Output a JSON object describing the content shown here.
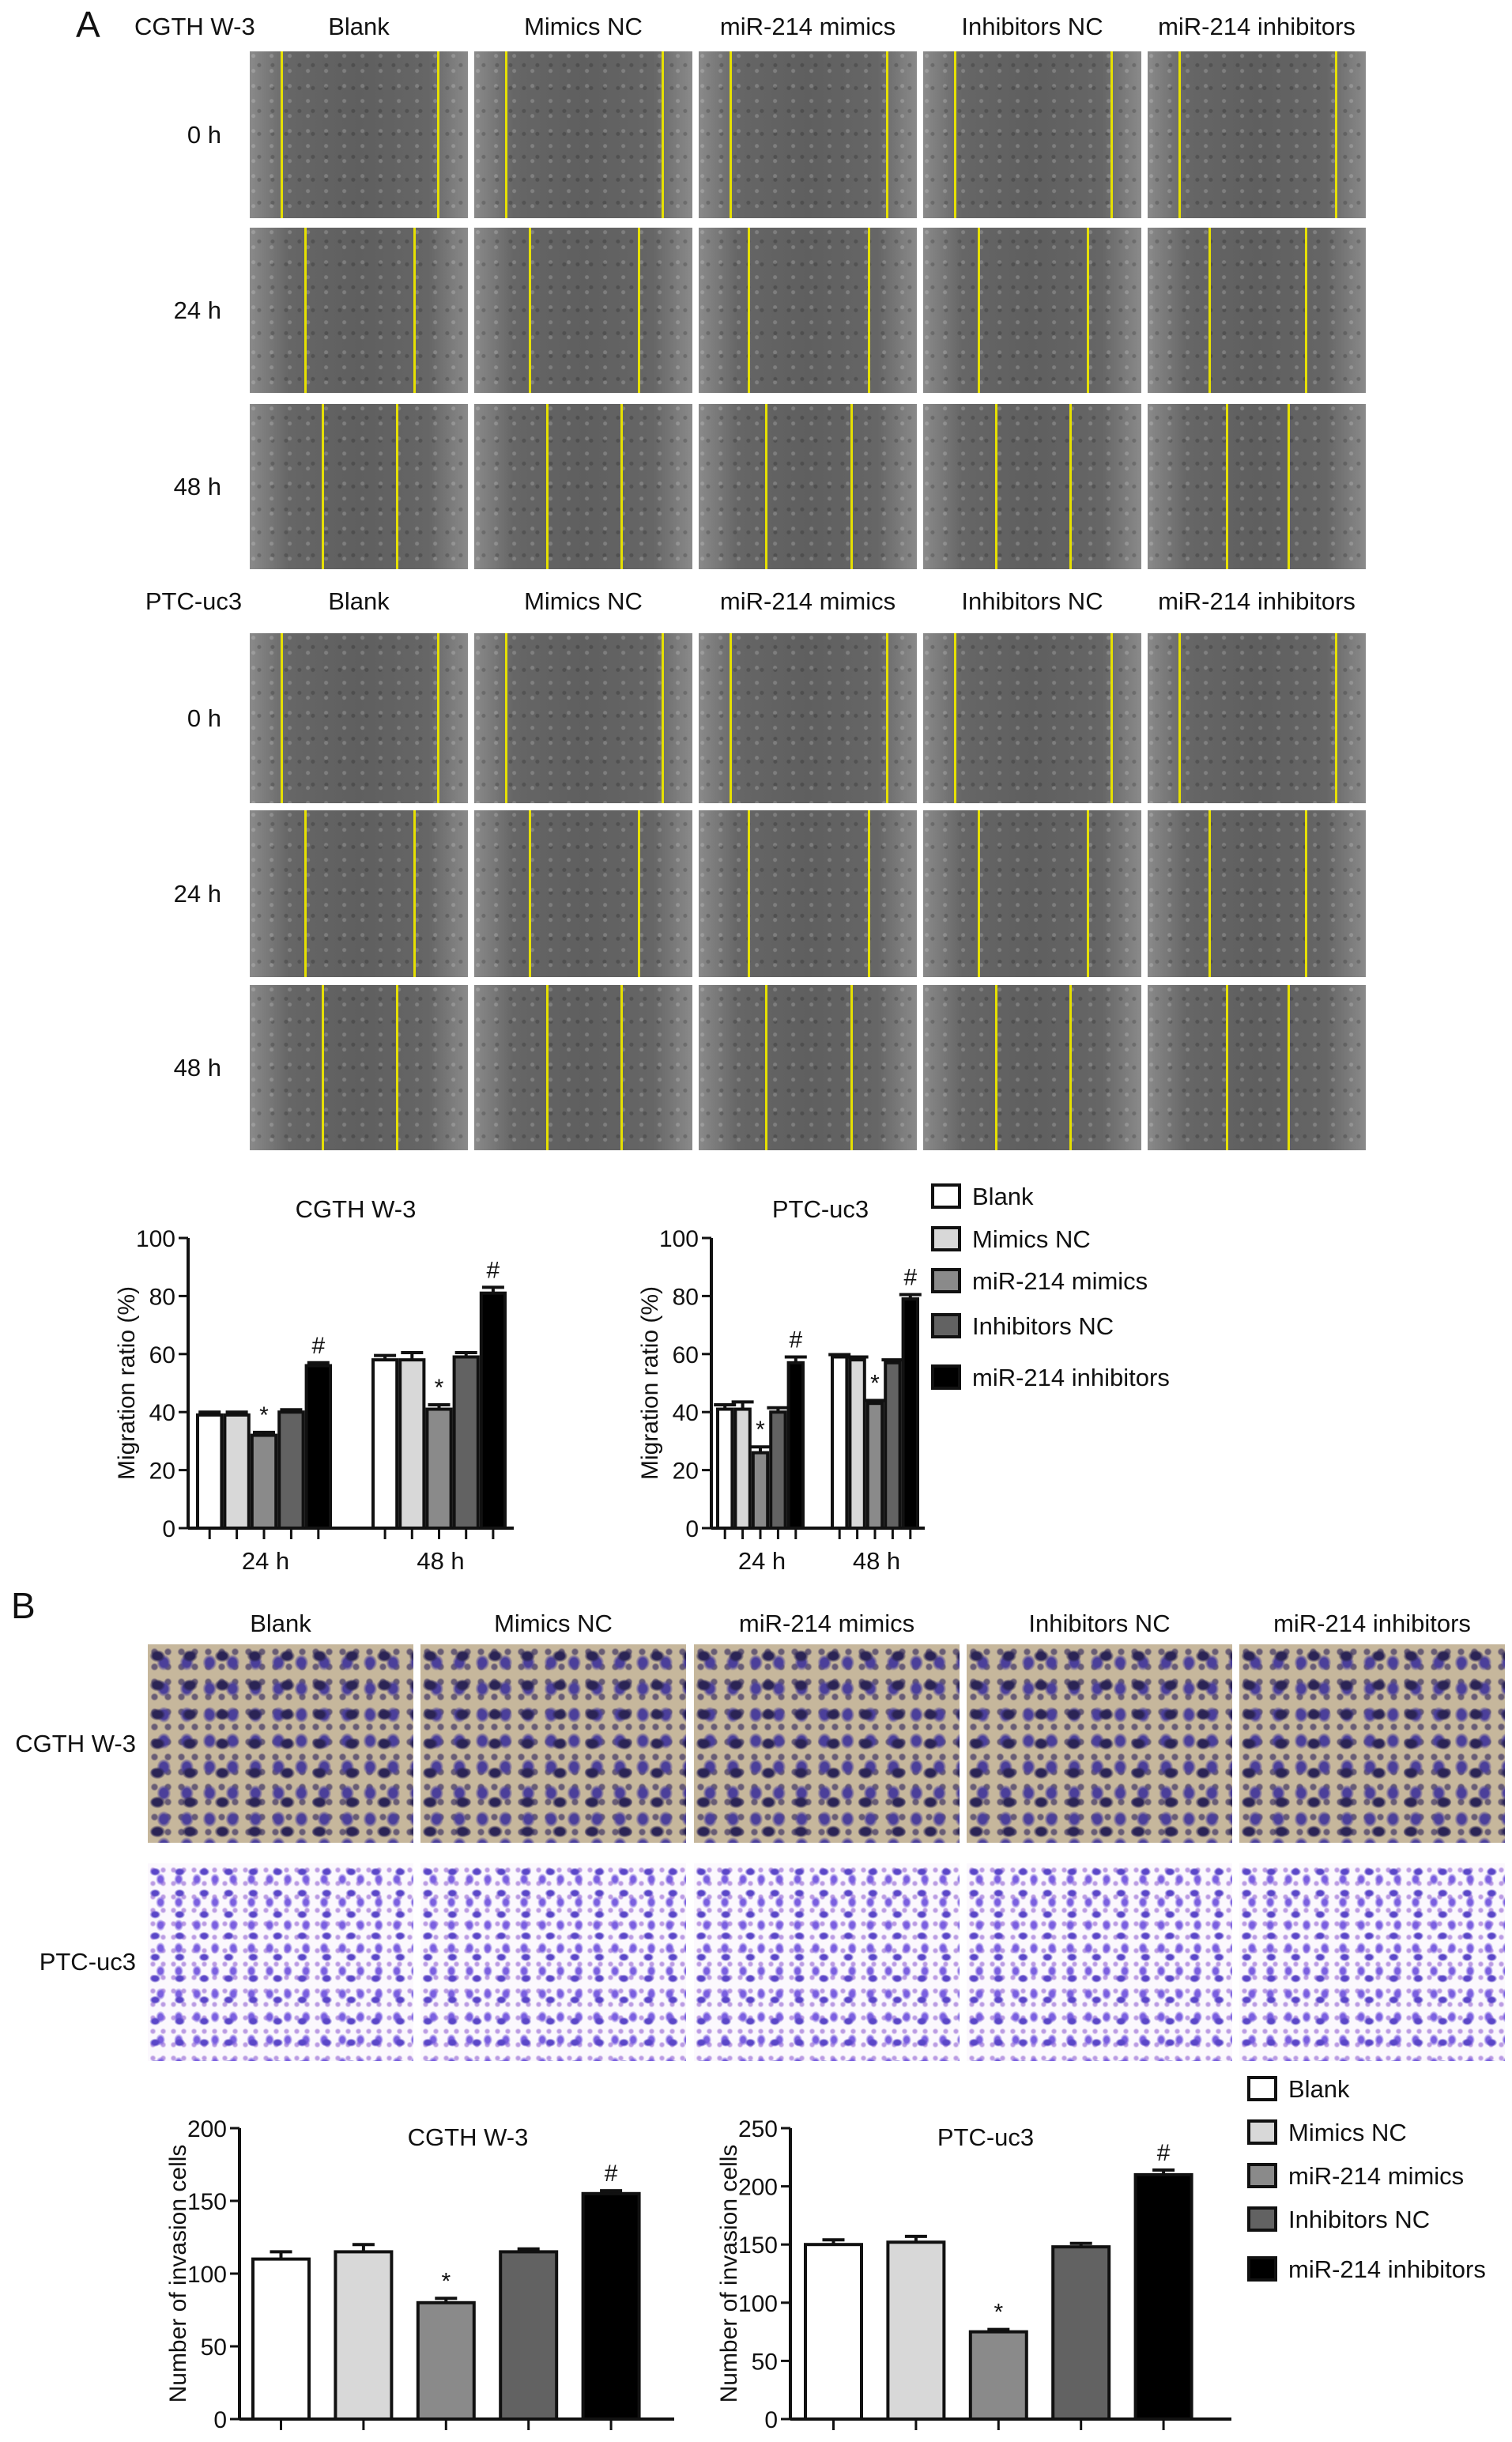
{
  "panel_a": {
    "letter": "A",
    "groups": [
      "Blank",
      "Mimics NC",
      "miR-214 mimics",
      "Inhibitors NC",
      "miR-214 inhibitors"
    ],
    "timepoints": [
      "0 h",
      "24 h",
      "48 h"
    ],
    "blocks": [
      {
        "cell_line": "CGTH W-3"
      },
      {
        "cell_line": "PTC-uc3"
      }
    ]
  },
  "panel_b": {
    "letter": "B",
    "groups": [
      "Blank",
      "Mimics NC",
      "miR-214 mimics",
      "Inhibitors NC",
      "miR-214 inhibitors"
    ],
    "rows": [
      "CGTH W-3",
      "PTC-uc3"
    ]
  },
  "colors": {
    "Blank": "#ffffff",
    "Mimics NC": "#d8d8d8",
    "miR-214 mimics": "#8a8a8a",
    "Inhibitors NC": "#626262",
    "miR-214 inhibitors": "#000000",
    "scratch_line": "#e6e000"
  },
  "chart_data": [
    {
      "type": "bar",
      "title": "CGTH W-3",
      "ylabel": "Migration ratio (%)",
      "ylim": [
        0,
        100
      ],
      "yticks": [
        0,
        20,
        40,
        60,
        80,
        100
      ],
      "categories": [
        "24 h",
        "48 h"
      ],
      "series": [
        {
          "name": "Blank",
          "values": [
            39,
            58
          ],
          "errors": [
            1,
            1.5
          ]
        },
        {
          "name": "Mimics NC",
          "values": [
            39,
            58
          ],
          "errors": [
            1,
            2.5
          ]
        },
        {
          "name": "miR-214 mimics",
          "values": [
            32,
            41
          ],
          "errors": [
            1,
            1.5
          ]
        },
        {
          "name": "Inhibitors NC",
          "values": [
            40,
            59
          ],
          "errors": [
            0.8,
            1.5
          ]
        },
        {
          "name": "miR-214 inhibitors",
          "values": [
            56,
            81
          ],
          "errors": [
            1,
            2
          ]
        }
      ],
      "annotations": [
        [
          "",
          "",
          "*",
          "",
          "#"
        ],
        [
          "",
          "",
          "*",
          "",
          "#"
        ]
      ]
    },
    {
      "type": "bar",
      "title": "PTC-uc3",
      "ylabel": "Migration ratio (%)",
      "ylim": [
        0,
        100
      ],
      "yticks": [
        0,
        20,
        40,
        60,
        80,
        100
      ],
      "categories": [
        "24 h",
        "48 h"
      ],
      "legend": "right",
      "series": [
        {
          "name": "Blank",
          "values": [
            41,
            59
          ],
          "errors": [
            1.5,
            0.8
          ]
        },
        {
          "name": "Mimics NC",
          "values": [
            41,
            58
          ],
          "errors": [
            2.5,
            1
          ]
        },
        {
          "name": "miR-214 mimics",
          "values": [
            26,
            43
          ],
          "errors": [
            2,
            1
          ]
        },
        {
          "name": "Inhibitors NC",
          "values": [
            40,
            57
          ],
          "errors": [
            1.5,
            1
          ]
        },
        {
          "name": "miR-214 inhibitors",
          "values": [
            57,
            79
          ],
          "errors": [
            2,
            1.5
          ]
        }
      ],
      "annotations": [
        [
          "",
          "",
          "*",
          "",
          "#"
        ],
        [
          "",
          "",
          "*",
          "",
          "#"
        ]
      ]
    },
    {
      "type": "bar",
      "title": "CGTH W-3",
      "ylabel": "Number of invasion cells",
      "ylim": [
        0,
        200
      ],
      "yticks": [
        0,
        50,
        100,
        150,
        200
      ],
      "categories": [
        "Blank",
        "Mimics NC",
        "miR-214 mimics",
        "Inhibitors NC",
        "miR-214 inhibitors"
      ],
      "values": [
        110,
        115,
        80,
        115,
        155
      ],
      "errors": [
        5,
        5,
        3,
        2,
        2
      ],
      "annotations": [
        "",
        "",
        "*",
        "",
        "#"
      ]
    },
    {
      "type": "bar",
      "title": "PTC-uc3",
      "ylabel": "Number of invasion cells",
      "ylim": [
        0,
        250
      ],
      "yticks": [
        0,
        50,
        100,
        150,
        200,
        250
      ],
      "categories": [
        "Blank",
        "Mimics NC",
        "miR-214 mimics",
        "Inhibitors NC",
        "miR-214 inhibitors"
      ],
      "values": [
        150,
        152,
        75,
        148,
        210
      ],
      "errors": [
        4,
        5,
        2,
        3,
        4
      ],
      "annotations": [
        "",
        "",
        "*",
        "",
        "#"
      ],
      "legend": "right"
    }
  ]
}
